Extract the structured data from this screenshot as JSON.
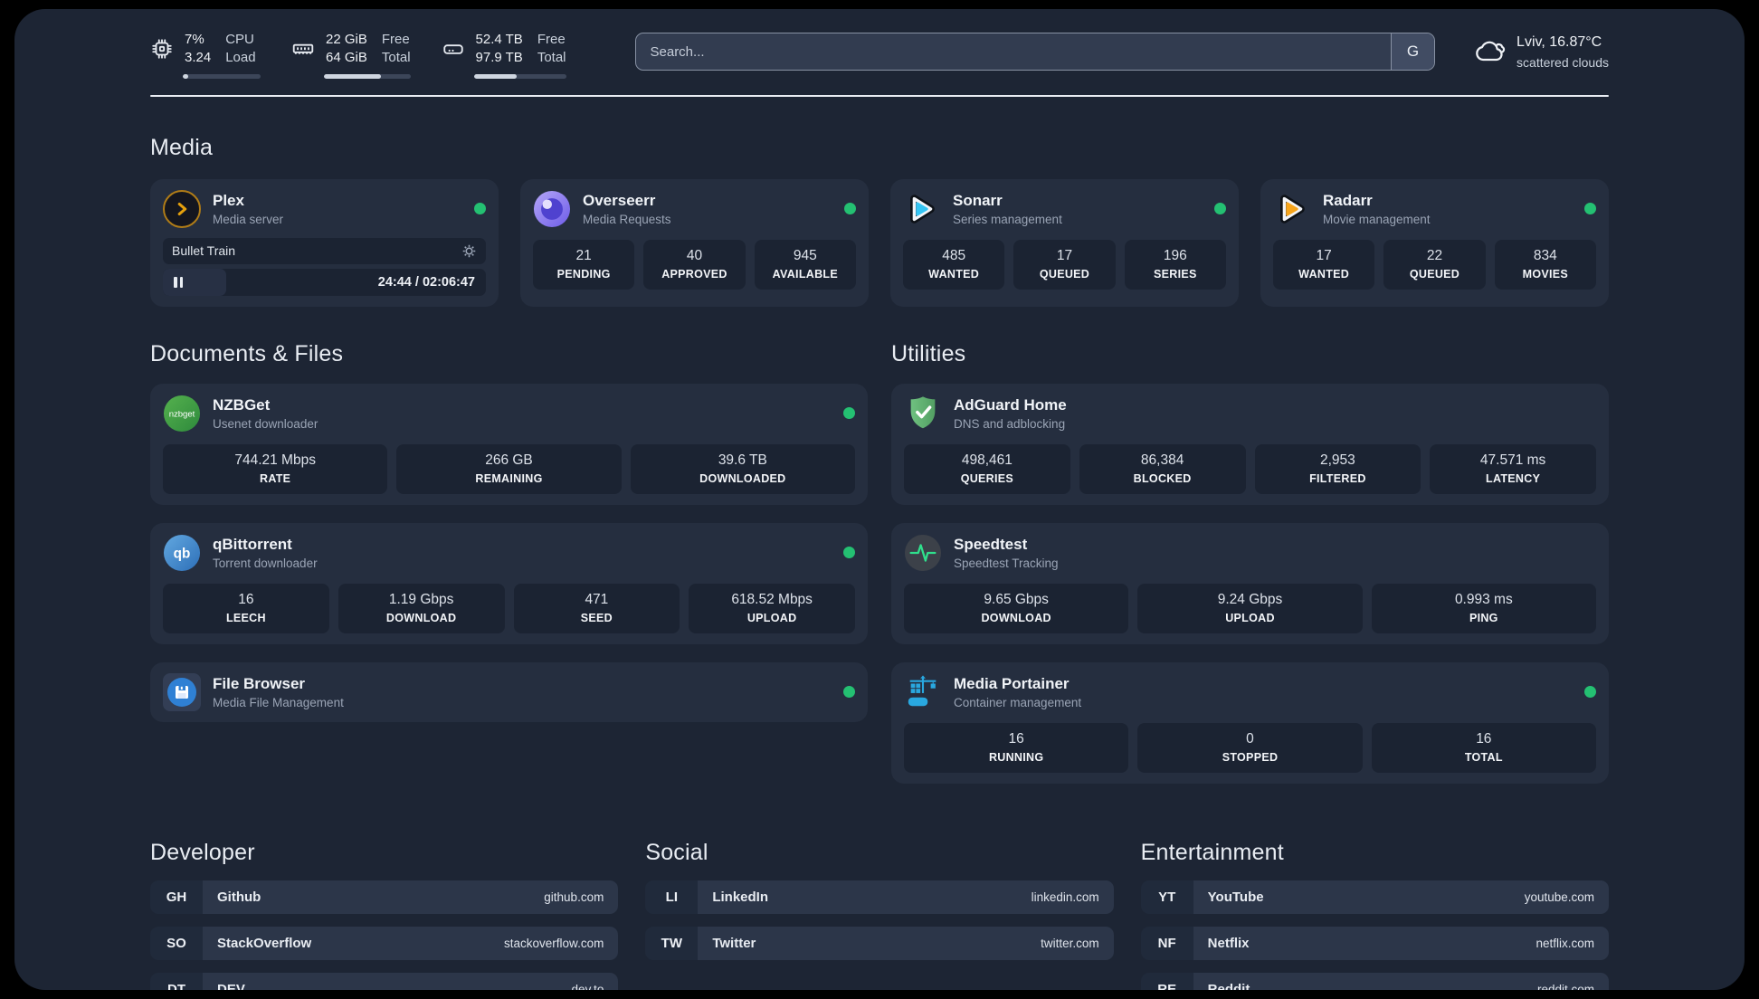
{
  "header": {
    "cpu": {
      "value_top": "7%",
      "value_bottom": "3.24",
      "label_top": "CPU",
      "label_bottom": "Load",
      "bar_percent": 7
    },
    "memory": {
      "value_top": "22 GiB",
      "value_bottom": "64 GiB",
      "label_top": "Free",
      "label_bottom": "Total",
      "bar_percent": 66
    },
    "disk": {
      "value_top": "52.4 TB",
      "value_bottom": "97.9 TB",
      "label_top": "Free",
      "label_bottom": "Total",
      "bar_percent": 47
    },
    "search": {
      "placeholder": "Search...",
      "engine_button": "G"
    },
    "weather": {
      "location": "Lviv, 16.87°C",
      "condition": "scattered clouds"
    }
  },
  "sections": {
    "media": "Media",
    "documents": "Documents & Files",
    "utilities": "Utilities",
    "developer": "Developer",
    "social": "Social",
    "entertainment": "Entertainment"
  },
  "apps": {
    "plex": {
      "name": "Plex",
      "desc": "Media server",
      "now_playing": "Bullet Train",
      "time": "24:44 / 02:06:47",
      "progress_percent": 19.5
    },
    "overseerr": {
      "name": "Overseerr",
      "desc": "Media Requests",
      "stats": [
        {
          "value": "21",
          "label": "PENDING"
        },
        {
          "value": "40",
          "label": "APPROVED"
        },
        {
          "value": "945",
          "label": "AVAILABLE"
        }
      ]
    },
    "sonarr": {
      "name": "Sonarr",
      "desc": "Series management",
      "stats": [
        {
          "value": "485",
          "label": "WANTED"
        },
        {
          "value": "17",
          "label": "QUEUED"
        },
        {
          "value": "196",
          "label": "SERIES"
        }
      ]
    },
    "radarr": {
      "name": "Radarr",
      "desc": "Movie management",
      "stats": [
        {
          "value": "17",
          "label": "WANTED"
        },
        {
          "value": "22",
          "label": "QUEUED"
        },
        {
          "value": "834",
          "label": "MOVIES"
        }
      ]
    },
    "nzbget": {
      "name": "NZBGet",
      "desc": "Usenet downloader",
      "stats": [
        {
          "value": "744.21 Mbps",
          "label": "RATE"
        },
        {
          "value": "266 GB",
          "label": "REMAINING"
        },
        {
          "value": "39.6 TB",
          "label": "DOWNLOADED"
        }
      ]
    },
    "qbittorrent": {
      "name": "qBittorrent",
      "desc": "Torrent downloader",
      "stats": [
        {
          "value": "16",
          "label": "LEECH"
        },
        {
          "value": "1.19 Gbps",
          "label": "DOWNLOAD"
        },
        {
          "value": "471",
          "label": "SEED"
        },
        {
          "value": "618.52 Mbps",
          "label": "UPLOAD"
        }
      ]
    },
    "filebrowser": {
      "name": "File Browser",
      "desc": "Media File Management"
    },
    "adguard": {
      "name": "AdGuard Home",
      "desc": "DNS and adblocking",
      "stats": [
        {
          "value": "498,461",
          "label": "QUERIES"
        },
        {
          "value": "86,384",
          "label": "BLOCKED"
        },
        {
          "value": "2,953",
          "label": "FILTERED"
        },
        {
          "value": "47.571 ms",
          "label": "LATENCY"
        }
      ]
    },
    "speedtest": {
      "name": "Speedtest",
      "desc": "Speedtest Tracking",
      "stats": [
        {
          "value": "9.65 Gbps",
          "label": "DOWNLOAD"
        },
        {
          "value": "9.24 Gbps",
          "label": "UPLOAD"
        },
        {
          "value": "0.993 ms",
          "label": "PING"
        }
      ]
    },
    "portainer": {
      "name": "Media Portainer",
      "desc": "Container management",
      "stats": [
        {
          "value": "16",
          "label": "RUNNING"
        },
        {
          "value": "0",
          "label": "STOPPED"
        },
        {
          "value": "16",
          "label": "TOTAL"
        }
      ]
    }
  },
  "links": {
    "developer": [
      {
        "abbr": "GH",
        "name": "Github",
        "url": "github.com"
      },
      {
        "abbr": "SO",
        "name": "StackOverflow",
        "url": "stackoverflow.com"
      },
      {
        "abbr": "DT",
        "name": "DEV",
        "url": "dev.to"
      }
    ],
    "social": [
      {
        "abbr": "LI",
        "name": "LinkedIn",
        "url": "linkedin.com"
      },
      {
        "abbr": "TW",
        "name": "Twitter",
        "url": "twitter.com"
      }
    ],
    "entertainment": [
      {
        "abbr": "YT",
        "name": "YouTube",
        "url": "youtube.com"
      },
      {
        "abbr": "NF",
        "name": "Netflix",
        "url": "netflix.com"
      },
      {
        "abbr": "RE",
        "name": "Reddit",
        "url": "reddit.com"
      }
    ]
  },
  "colors": {
    "status_online": "#24c072",
    "plex_accent": "#e5a00d"
  }
}
